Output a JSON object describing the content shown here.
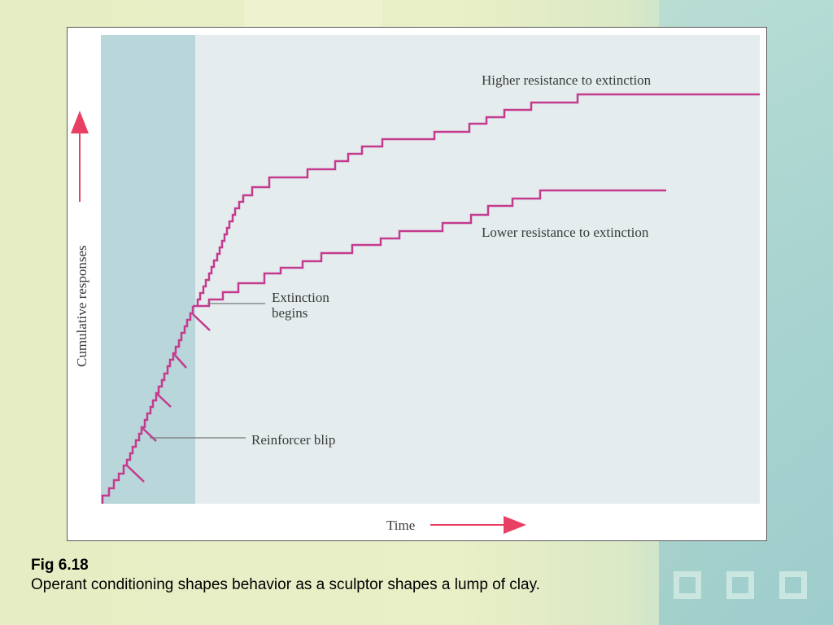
{
  "figure": {
    "y_axis_label": "Cumulative responses",
    "x_axis_label": "Time",
    "labels": {
      "higher": "Higher resistance to extinction",
      "lower": "Lower resistance to extinction",
      "extinction_line1": "Extinction",
      "extinction_line2": "begins",
      "reinforcer": "Reinforcer blip"
    },
    "colors": {
      "curve": "#c43a8e",
      "arrow": "#e84062",
      "reinforcement_phase": "#b9d6da",
      "extinction_phase": "#e4ecee"
    }
  },
  "caption": {
    "figure_number": "Fig 6.18",
    "text": "Operant conditioning shapes behavior as a sculptor shapes a lump of clay."
  }
}
